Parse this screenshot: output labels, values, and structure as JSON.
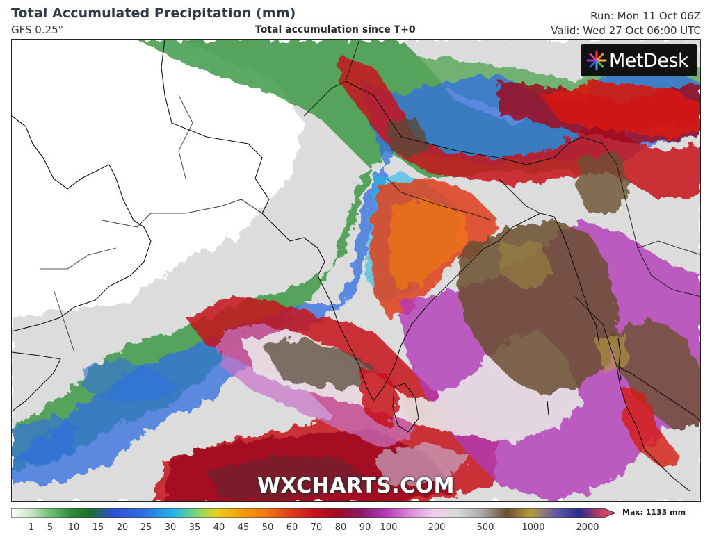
{
  "header": {
    "title": "Total Accumulated Precipitation (mm)",
    "model": "GFS 0.25°",
    "subtitle": "Total accumulation since T+0",
    "run": "Run: Mon 11 Oct 06Z",
    "valid": "Valid: Wed 27 Oct 06:00 UTC"
  },
  "logo": {
    "text": "MetDesk"
  },
  "watermark": "WXCHARTS.COM",
  "colorbar": {
    "max_label": "Max: 1133 mm",
    "ticks": [
      "1",
      "5",
      "10",
      "15",
      "20",
      "25",
      "30",
      "35",
      "40",
      "45",
      "50",
      "60",
      "70",
      "80",
      "90",
      "100",
      "200",
      "500",
      "1000",
      "2000"
    ]
  },
  "colors": {
    "land_white": "#ffffff",
    "green": "#2e8b3a",
    "blue": "#2f6fe0",
    "cyan": "#22b8e8",
    "yellow": "#e8d020",
    "orange": "#f07a10",
    "red": "#d61a10",
    "dark_red": "#a00c20",
    "magenta": "#b33ab8",
    "pink": "#e8a8e8",
    "brown": "#6b5030"
  }
}
